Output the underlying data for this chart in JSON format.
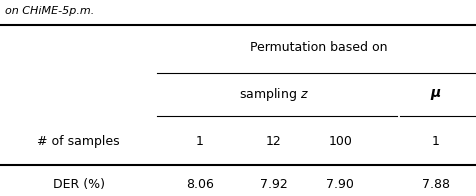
{
  "title_text": "on CHiME-5p.m.",
  "header1": "Permutation based on",
  "header2_sampling": "sampling z",
  "header2_mu": "μ",
  "col_header": "# of samples",
  "col_values": [
    "1",
    "12",
    "100",
    "1"
  ],
  "row_label": "DER (%)",
  "row_values": [
    "8.06",
    "7.92",
    "7.90",
    "7.88"
  ],
  "bg_color": "#ffffff",
  "text_color": "#000000",
  "fontsize": 9
}
